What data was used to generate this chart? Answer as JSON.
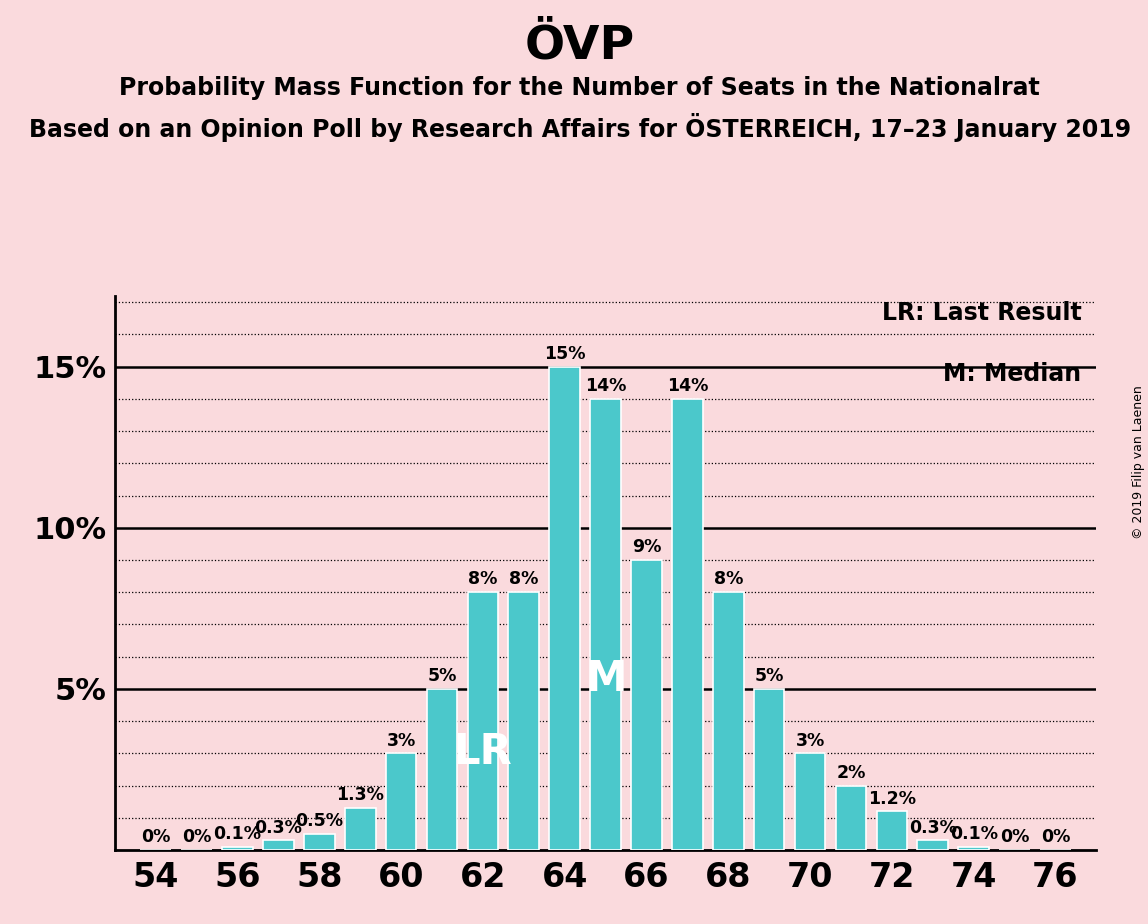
{
  "title": "ÖVP",
  "subtitle1": "Probability Mass Function for the Number of Seats in the Nationalrat",
  "subtitle2": "Based on an Opinion Poll by Research Affairs for ÖSTERREICH, 17–23 January 2019",
  "copyright": "© 2019 Filip van Laenen",
  "seats": [
    54,
    55,
    56,
    57,
    58,
    59,
    60,
    61,
    62,
    63,
    64,
    65,
    66,
    67,
    68,
    69,
    70,
    71,
    72,
    73,
    74,
    75,
    76
  ],
  "probabilities": [
    0.0,
    0.0,
    0.001,
    0.003,
    0.005,
    0.013,
    0.03,
    0.05,
    0.08,
    0.08,
    0.15,
    0.14,
    0.09,
    0.14,
    0.08,
    0.05,
    0.03,
    0.02,
    0.012,
    0.003,
    0.001,
    0.0,
    0.0
  ],
  "bar_labels": [
    "0%",
    "0%",
    "0.1%",
    "0.3%",
    "0.5%",
    "1.3%",
    "3%",
    "5%",
    "8%",
    "8%",
    "15%",
    "14%",
    "9%",
    "14%",
    "8%",
    "5%",
    "3%",
    "2%",
    "1.2%",
    "0.3%",
    "0.1%",
    "0%",
    "0%"
  ],
  "bar_color": "#4bc8cb",
  "background_color": "#fadadd",
  "lr_seat": 62,
  "median_seat": 65,
  "ytick_vals": [
    0.0,
    0.05,
    0.1,
    0.15
  ],
  "ytick_labels": [
    "",
    "5%",
    "10%",
    "15%"
  ],
  "xtick_start": 54,
  "xtick_end": 76,
  "xtick_step": 2,
  "title_fontsize": 34,
  "subtitle_fontsize": 17,
  "bar_label_fontsize": 12.5,
  "annotation_fontsize": 30,
  "ytick_fontsize": 22,
  "xtick_fontsize": 24,
  "legend_fontsize": 17,
  "copyright_fontsize": 9
}
